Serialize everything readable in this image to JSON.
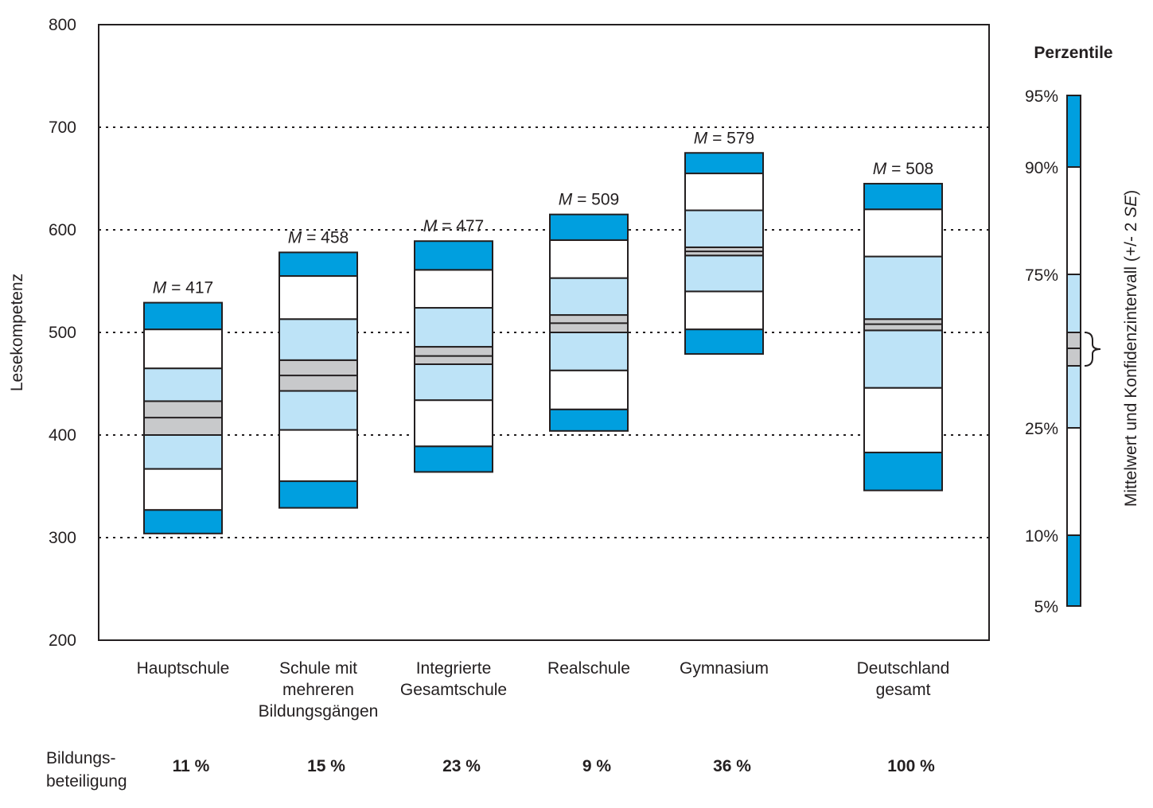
{
  "chart_data": {
    "type": "boxplot",
    "ylabel": "Lesekompetenz",
    "ylim": [
      200,
      800
    ],
    "yticks": [
      800,
      700,
      600,
      500,
      400,
      300,
      200
    ],
    "gridlines": [
      700,
      600,
      500,
      400,
      300
    ],
    "mean_prefix": "M",
    "mean_sep": " = ",
    "categories": [
      {
        "name": "hauptschule",
        "label_lines": [
          "Hauptschule"
        ],
        "share": "11 %",
        "mean": 417,
        "mean_label": "417",
        "p5": 304,
        "p10": 327,
        "p25": 367,
        "ci_low": 400,
        "ci_high": 433,
        "p75": 465,
        "p90": 503,
        "p95": 529
      },
      {
        "name": "schule-mit-mehreren-bildungsgaengen",
        "label_lines": [
          "Schule mit",
          "mehreren",
          "Bildungsgängen"
        ],
        "share": "15 %",
        "mean": 458,
        "mean_label": "458",
        "p5": 329,
        "p10": 355,
        "p25": 405,
        "ci_low": 443,
        "ci_high": 473,
        "p75": 513,
        "p90": 555,
        "p95": 578
      },
      {
        "name": "integrierte-gesamtschule",
        "label_lines": [
          "Integrierte",
          "Gesamtschule"
        ],
        "share": "23 %",
        "mean": 477,
        "mean_label": "477",
        "p5": 364,
        "p10": 389,
        "p25": 434,
        "ci_low": 469,
        "ci_high": 486,
        "p75": 524,
        "p90": 561,
        "p95": 589
      },
      {
        "name": "realschule",
        "label_lines": [
          "Realschule"
        ],
        "share": "9 %",
        "mean": 509,
        "mean_label": "509",
        "p5": 404,
        "p10": 425,
        "p25": 463,
        "ci_low": 500,
        "ci_high": 517,
        "p75": 553,
        "p90": 590,
        "p95": 615
      },
      {
        "name": "gymnasium",
        "label_lines": [
          "Gymnasium"
        ],
        "share": "36 %",
        "mean": 579,
        "mean_label": "579",
        "p5": 479,
        "p10": 503,
        "p25": 540,
        "ci_low": 575,
        "ci_high": 583,
        "p75": 619,
        "p90": 655,
        "p95": 675
      },
      {
        "name": "deutschland-gesamt",
        "label_lines": [
          "Deutschland",
          "gesamt"
        ],
        "share": "100 %",
        "mean": 508,
        "mean_label": "508",
        "p5": 346,
        "p10": 383,
        "p25": 446,
        "ci_low": 502,
        "ci_high": 513,
        "p75": 574,
        "p90": 620,
        "p95": 645
      }
    ],
    "bottom_row_label_lines": [
      "Bildungs-",
      "beteiligung"
    ],
    "legend": {
      "title": "Perzentile",
      "percentiles": [
        "95%",
        "90%",
        "75%",
        "25%",
        "10%",
        "5%"
      ],
      "side_label": "Mittelwert und Konfidenzintervall (+/- 2 ",
      "side_label_italic": "SE",
      "side_label_end": ")"
    },
    "colors": {
      "outer": "#009fdf",
      "inner": "#bde3f7",
      "ci": "#c8c9cb",
      "white": "#ffffff",
      "stroke": "#231f20"
    }
  }
}
